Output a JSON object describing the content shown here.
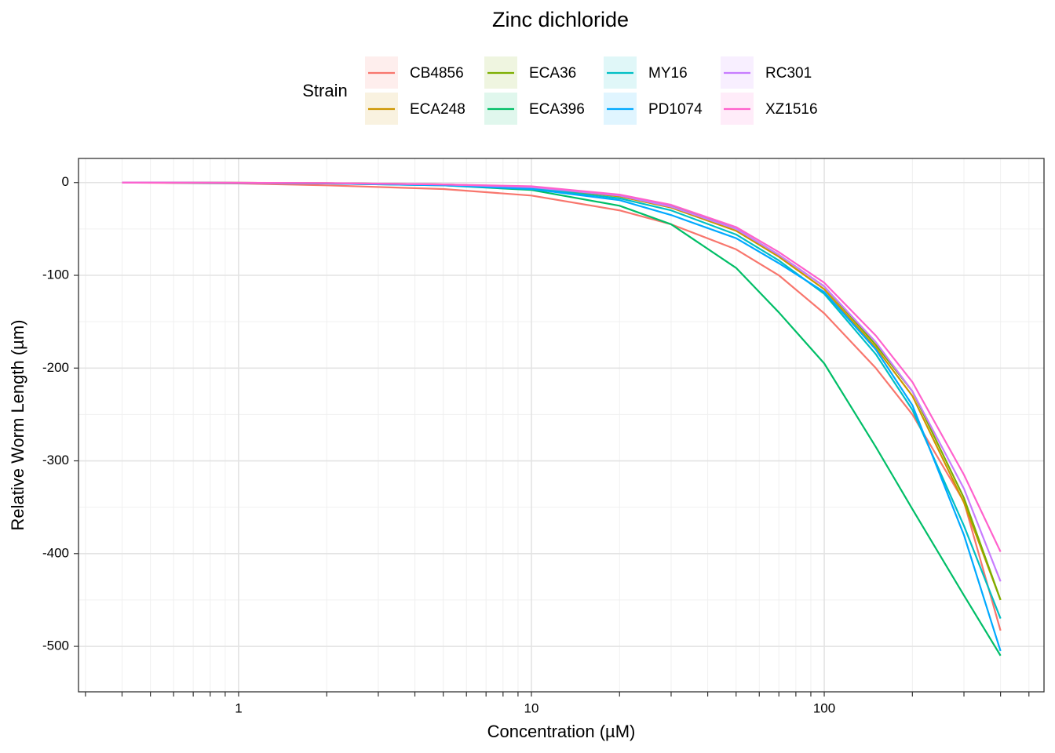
{
  "chart_data": {
    "type": "line",
    "title": "Zinc dichloride",
    "x_label": "Concentration (µM)",
    "y_label": "Relative Worm Length (µm)",
    "legend_title": "Strain",
    "legend_position": "top",
    "log_x": true,
    "grid": true,
    "xlim": [
      0.284,
      563
    ],
    "ylim": [
      -549,
      26
    ],
    "xticks": [
      1,
      10,
      100
    ],
    "yticks": [
      -500,
      -400,
      -300,
      -200,
      -100,
      0
    ],
    "x": [
      0.4,
      1,
      2,
      5,
      10,
      20,
      30,
      50,
      70,
      100,
      150,
      200,
      300,
      400
    ],
    "series": [
      {
        "name": "CB4856",
        "color": "#F8766D",
        "values": [
          0,
          -1,
          -3,
          -7,
          -14,
          -30,
          -45,
          -72,
          -100,
          -141,
          -200,
          -250,
          -344,
          -483
        ]
      },
      {
        "name": "ECA248",
        "color": "#CD9600",
        "values": [
          0,
          -0.2,
          -0.6,
          -2,
          -5,
          -15,
          -27,
          -52,
          -80,
          -115,
          -178,
          -230,
          -345,
          -450
        ]
      },
      {
        "name": "ECA36",
        "color": "#7CAE00",
        "values": [
          0,
          -0.2,
          -0.6,
          -2,
          -5,
          -14,
          -25,
          -50,
          -78,
          -112,
          -175,
          -225,
          -340,
          -450
        ]
      },
      {
        "name": "ECA396",
        "color": "#00BE67",
        "values": [
          0,
          -0.3,
          -1,
          -3,
          -8,
          -25,
          -45,
          -92,
          -140,
          -195,
          -285,
          -352,
          -445,
          -510
        ]
      },
      {
        "name": "MY16",
        "color": "#00BFC4",
        "values": [
          0,
          -0.3,
          -0.8,
          -2.5,
          -6,
          -17,
          -30,
          -56,
          -84,
          -120,
          -185,
          -245,
          -370,
          -470
        ]
      },
      {
        "name": "PD1074",
        "color": "#00A9FF",
        "values": [
          0,
          -0.4,
          -1,
          -3,
          -7,
          -19,
          -35,
          -60,
          -87,
          -118,
          -180,
          -240,
          -380,
          -505
        ]
      },
      {
        "name": "RC301",
        "color": "#C77CFF",
        "values": [
          0,
          -0.2,
          -0.6,
          -2,
          -5,
          -14,
          -26,
          -50,
          -78,
          -112,
          -172,
          -225,
          -330,
          -430
        ]
      },
      {
        "name": "XZ1516",
        "color": "#FF61CC",
        "values": [
          0,
          -0.2,
          -0.5,
          -2,
          -4,
          -13,
          -24,
          -48,
          -75,
          -108,
          -165,
          -215,
          -315,
          -398
        ]
      }
    ]
  }
}
